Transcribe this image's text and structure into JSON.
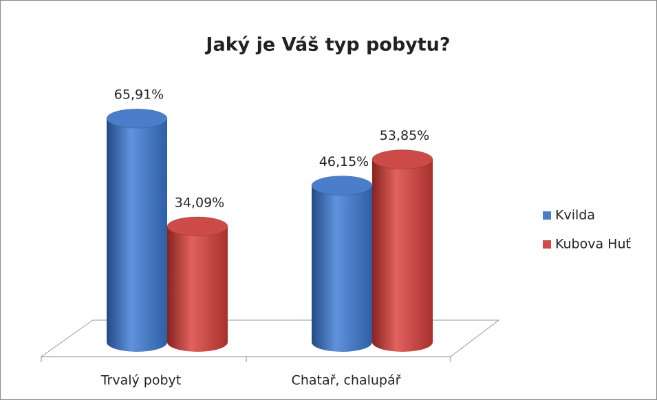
{
  "chart_data": {
    "type": "bar3d",
    "title": "Jaký je Váš typ pobytu?",
    "categories": [
      "Trvalý pobyt",
      "Chatař, chalupář"
    ],
    "series": [
      {
        "name": "Kvilda",
        "color": "#4a7ecb",
        "values": [
          65.91,
          46.15
        ],
        "value_labels": [
          "65,91%",
          "46,15%"
        ]
      },
      {
        "name": "Kubova Huť",
        "color": "#cc4b48",
        "values": [
          34.09,
          53.85
        ],
        "value_labels": [
          "34,09%",
          "53,85%"
        ]
      }
    ]
  }
}
